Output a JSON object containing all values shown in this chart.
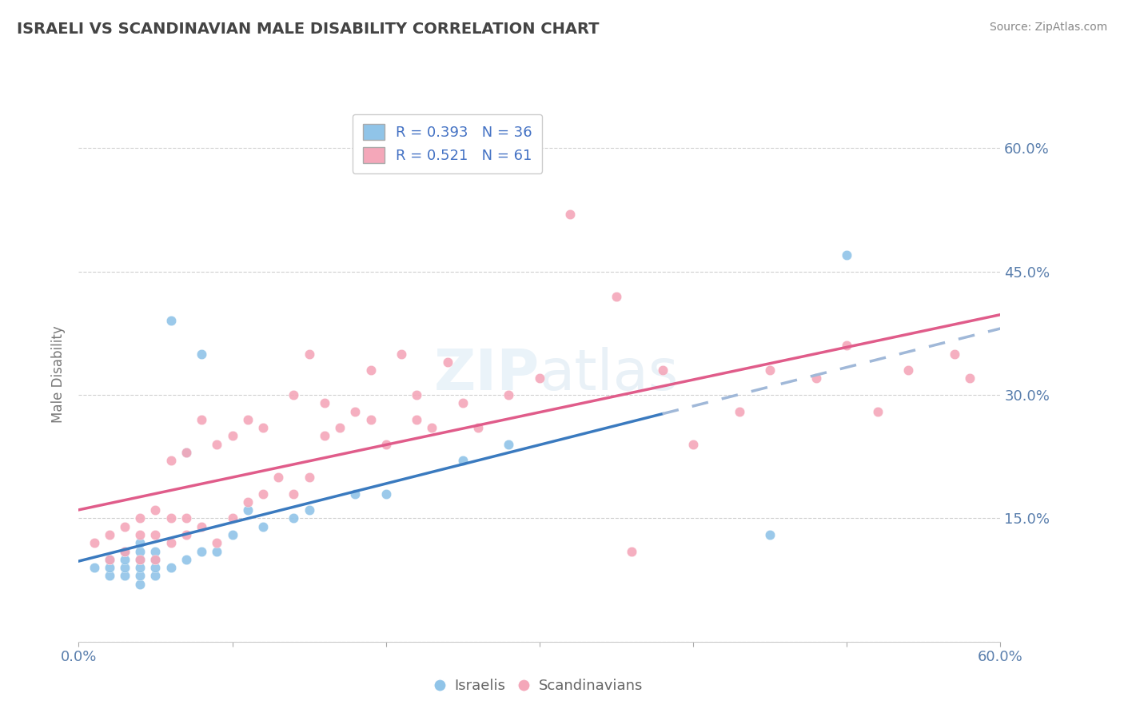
{
  "title": "ISRAELI VS SCANDINAVIAN MALE DISABILITY CORRELATION CHART",
  "source": "Source: ZipAtlas.com",
  "ylabel": "Male Disability",
  "xlim": [
    0.0,
    0.6
  ],
  "ylim": [
    0.0,
    0.65
  ],
  "xticks": [
    0.0,
    0.1,
    0.2,
    0.3,
    0.4,
    0.5,
    0.6
  ],
  "xticklabels": [
    "0.0%",
    "",
    "",
    "",
    "",
    "",
    "60.0%"
  ],
  "yticks": [
    0.0,
    0.15,
    0.3,
    0.45,
    0.6
  ],
  "yticklabels": [
    "",
    "15.0%",
    "30.0%",
    "45.0%",
    "60.0%"
  ],
  "legend_r_israeli": "0.393",
  "legend_n_israeli": "36",
  "legend_r_scandinavian": "0.521",
  "legend_n_scandinavian": "61",
  "israeli_color": "#90c4e8",
  "scandinavian_color": "#f4a7b9",
  "israeli_line_color": "#3a7abf",
  "scandinavian_line_color": "#e05c8a",
  "israeli_dash_color": "#a0b8d8",
  "background_color": "#ffffff",
  "grid_color": "#d0d0d0",
  "title_color": "#444444",
  "israelis_scatter_x": [
    0.01,
    0.02,
    0.02,
    0.02,
    0.03,
    0.03,
    0.03,
    0.03,
    0.04,
    0.04,
    0.04,
    0.04,
    0.04,
    0.04,
    0.05,
    0.05,
    0.05,
    0.05,
    0.06,
    0.06,
    0.07,
    0.07,
    0.08,
    0.08,
    0.09,
    0.1,
    0.11,
    0.12,
    0.14,
    0.15,
    0.18,
    0.2,
    0.25,
    0.28,
    0.45,
    0.5
  ],
  "israelis_scatter_y": [
    0.09,
    0.08,
    0.09,
    0.1,
    0.08,
    0.09,
    0.1,
    0.11,
    0.07,
    0.08,
    0.09,
    0.1,
    0.11,
    0.12,
    0.08,
    0.09,
    0.1,
    0.11,
    0.09,
    0.39,
    0.1,
    0.23,
    0.11,
    0.35,
    0.11,
    0.13,
    0.16,
    0.14,
    0.15,
    0.16,
    0.18,
    0.18,
    0.22,
    0.24,
    0.13,
    0.47
  ],
  "scandinavians_scatter_x": [
    0.01,
    0.02,
    0.02,
    0.03,
    0.03,
    0.04,
    0.04,
    0.04,
    0.05,
    0.05,
    0.05,
    0.06,
    0.06,
    0.06,
    0.07,
    0.07,
    0.07,
    0.08,
    0.08,
    0.09,
    0.09,
    0.1,
    0.1,
    0.11,
    0.11,
    0.12,
    0.12,
    0.13,
    0.14,
    0.14,
    0.15,
    0.15,
    0.16,
    0.16,
    0.17,
    0.18,
    0.19,
    0.19,
    0.2,
    0.21,
    0.22,
    0.22,
    0.23,
    0.24,
    0.25,
    0.26,
    0.28,
    0.3,
    0.32,
    0.35,
    0.36,
    0.38,
    0.4,
    0.43,
    0.45,
    0.48,
    0.5,
    0.52,
    0.54,
    0.57,
    0.58
  ],
  "scandinavians_scatter_y": [
    0.12,
    0.1,
    0.13,
    0.11,
    0.14,
    0.1,
    0.13,
    0.15,
    0.1,
    0.13,
    0.16,
    0.12,
    0.15,
    0.22,
    0.13,
    0.15,
    0.23,
    0.14,
    0.27,
    0.12,
    0.24,
    0.15,
    0.25,
    0.17,
    0.27,
    0.18,
    0.26,
    0.2,
    0.18,
    0.3,
    0.2,
    0.35,
    0.25,
    0.29,
    0.26,
    0.28,
    0.27,
    0.33,
    0.24,
    0.35,
    0.27,
    0.3,
    0.26,
    0.34,
    0.29,
    0.26,
    0.3,
    0.32,
    0.52,
    0.42,
    0.11,
    0.33,
    0.24,
    0.28,
    0.33,
    0.32,
    0.36,
    0.28,
    0.33,
    0.35,
    0.32
  ],
  "israeli_trendline_x0": 0.0,
  "israeli_trendline_x_solid_end": 0.38,
  "israeli_trendline_x_dash_end": 0.6,
  "scandinavian_trendline_x0": 0.0,
  "scandinavian_trendline_x_end": 0.6
}
